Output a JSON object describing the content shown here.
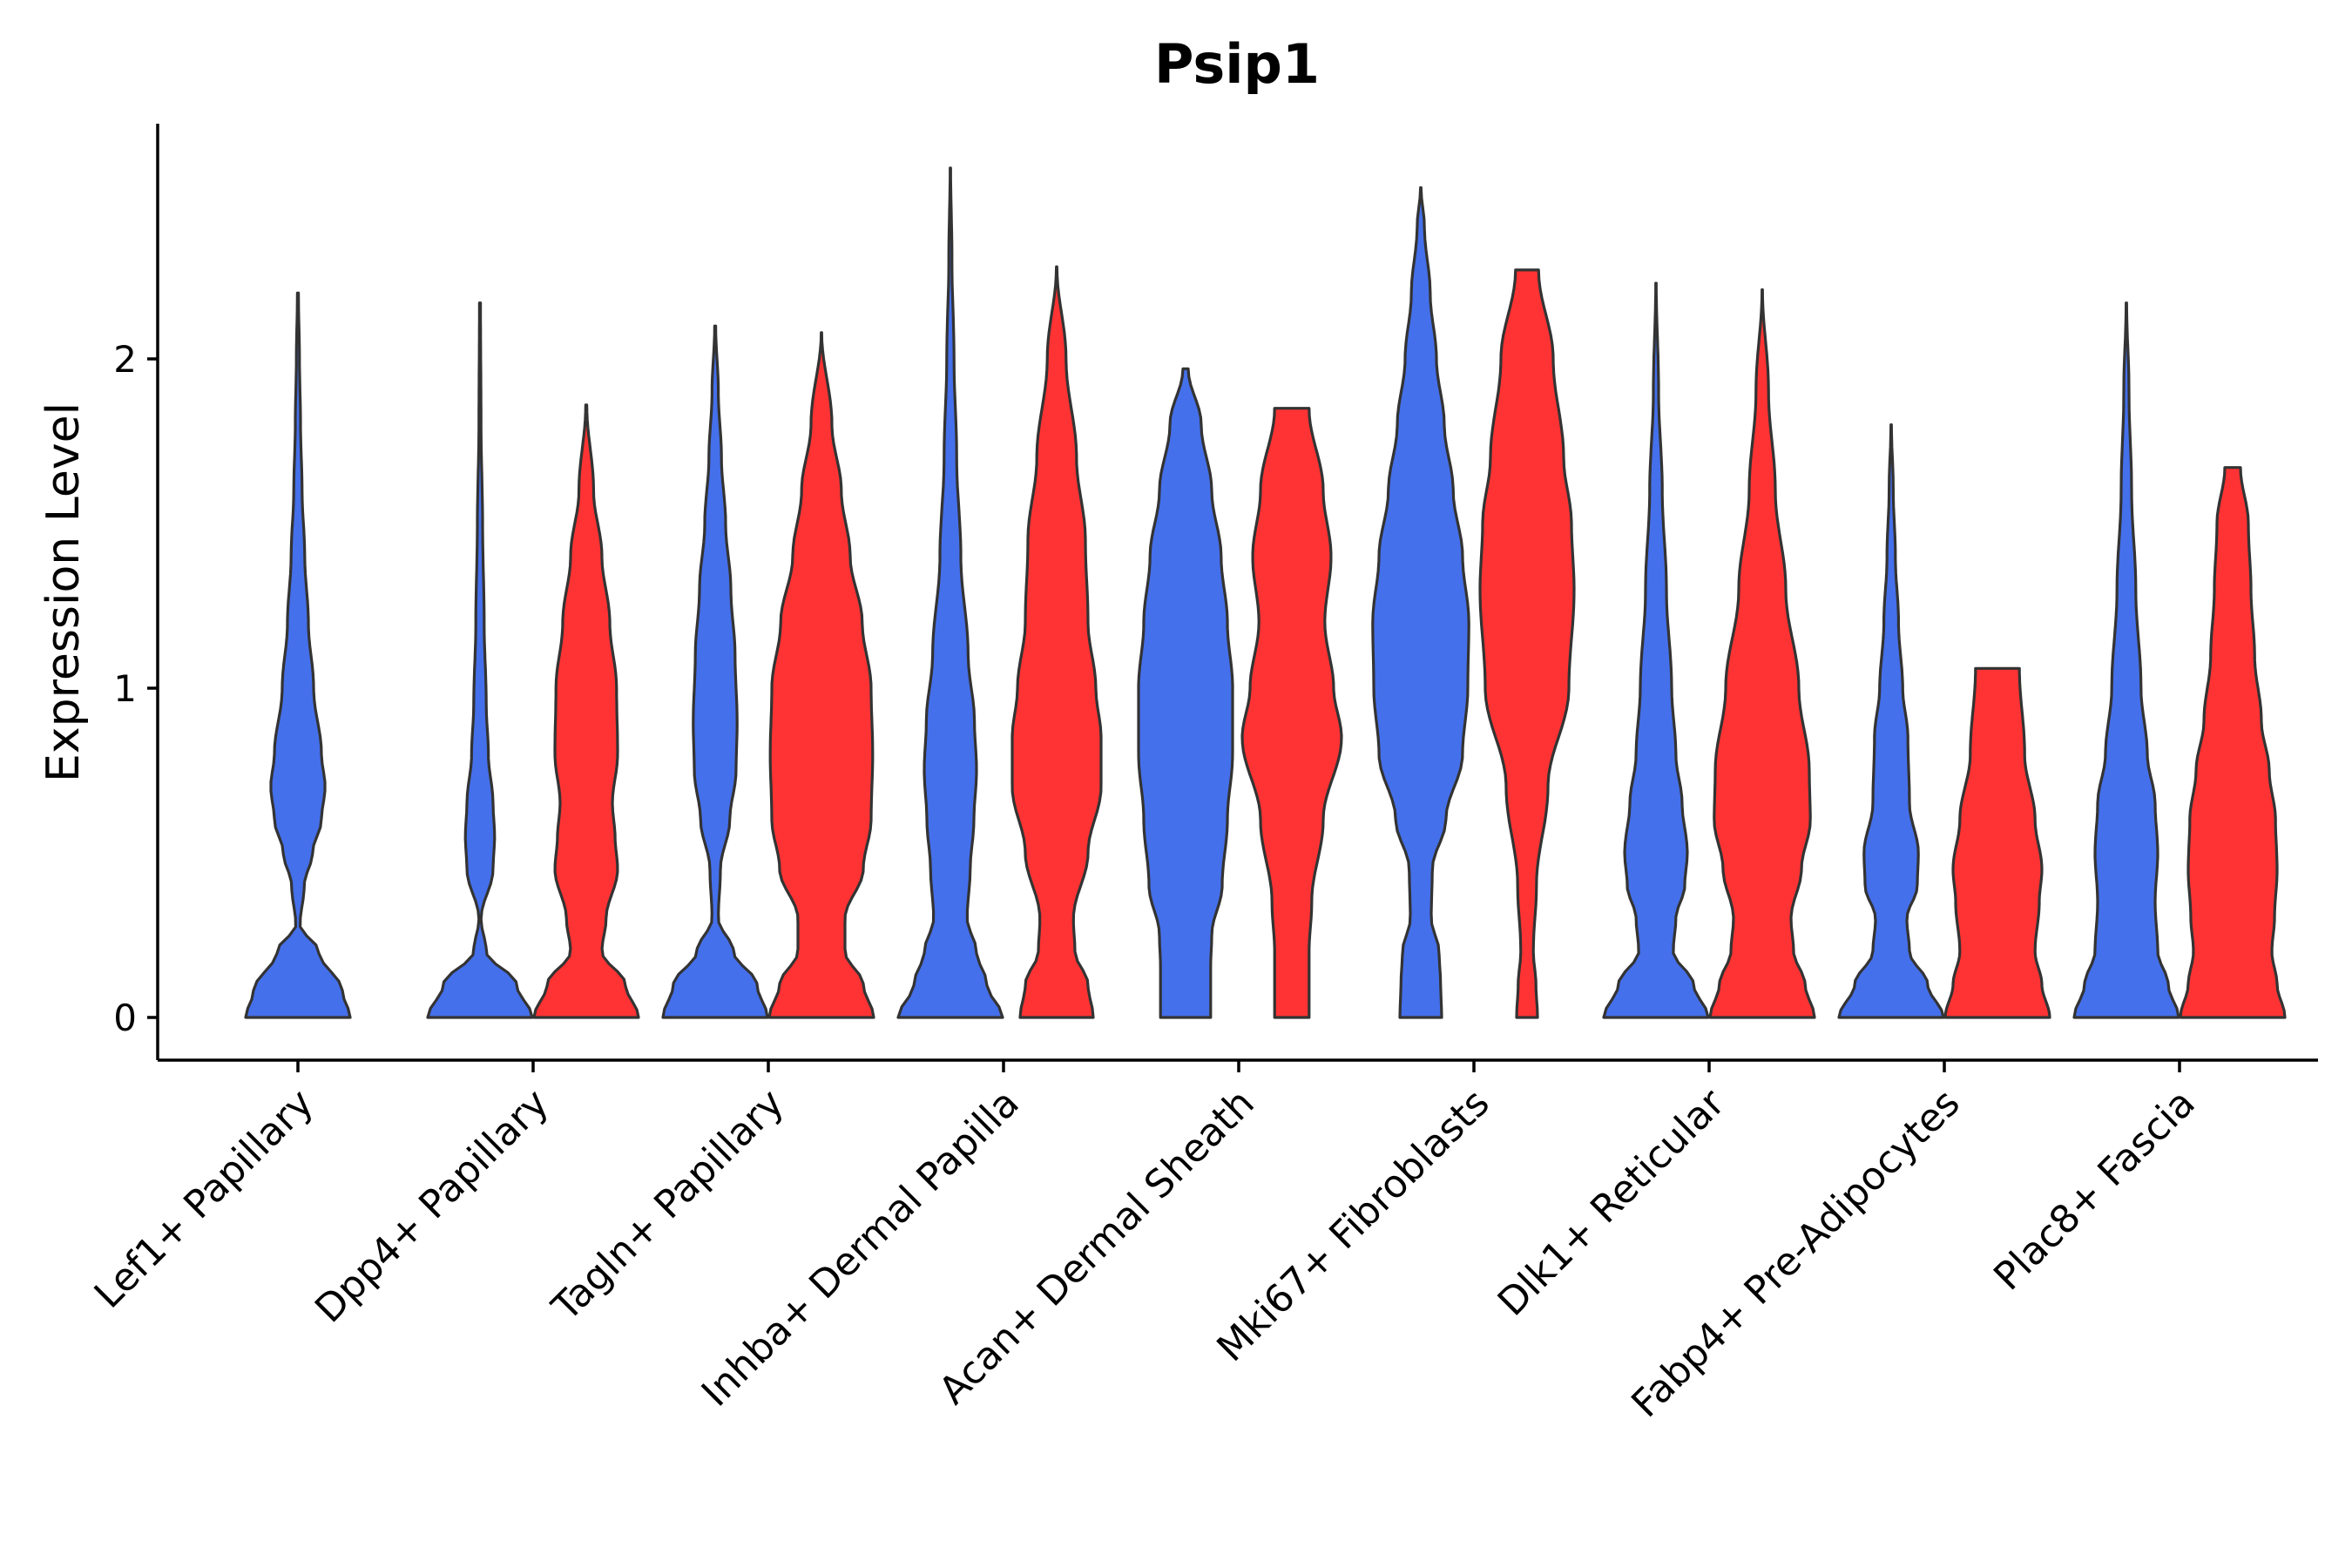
{
  "chart_data": {
    "type": "violin",
    "title": "Psip1",
    "xlabel": "",
    "ylabel": "Expression Level",
    "ylim": [
      -0.13,
      2.7
    ],
    "yticks": [
      0,
      1,
      2
    ],
    "split_colors": {
      "left": "#4570EB",
      "right": "#FF3333"
    },
    "categories": [
      "Lef1+ Papillary",
      "Dpp4+ Papillary",
      "Tagln+ Papillary",
      "Inhba+ Dermal Papilla",
      "Acan+ Dermal Sheath",
      "Mki67+ Fibroblasts",
      "Dlk1+ Reticular",
      "Fabp4+ Pre-Adipocytes",
      "Plac8+ Fascia"
    ],
    "series": [
      {
        "name": "blue",
        "color": "#4570EB",
        "violins": [
          {
            "max": 2.2,
            "profile": [
              [
                0,
                1.0
              ],
              [
                0.08,
                0.85
              ],
              [
                0.2,
                0.4
              ],
              [
                0.28,
                0.04
              ],
              [
                0.4,
                0.12
              ],
              [
                0.5,
                0.28
              ],
              [
                0.6,
                0.45
              ],
              [
                0.7,
                0.52
              ],
              [
                0.8,
                0.45
              ],
              [
                1.0,
                0.3
              ],
              [
                1.2,
                0.2
              ],
              [
                1.4,
                0.13
              ],
              [
                1.6,
                0.08
              ],
              [
                1.8,
                0.05
              ],
              [
                2.0,
                0.03
              ],
              [
                2.2,
                0.01
              ]
            ]
          },
          {
            "max": 2.17,
            "profile": [
              [
                0,
                1.0
              ],
              [
                0.1,
                0.7
              ],
              [
                0.2,
                0.12
              ],
              [
                0.3,
                0.02
              ],
              [
                0.45,
                0.25
              ],
              [
                0.55,
                0.28
              ],
              [
                0.65,
                0.25
              ],
              [
                0.8,
                0.16
              ],
              [
                0.95,
                0.12
              ],
              [
                1.2,
                0.08
              ],
              [
                1.5,
                0.05
              ],
              [
                1.8,
                0.02
              ],
              [
                2.17,
                0.01
              ]
            ]
          },
          {
            "max": 2.1,
            "profile": [
              [
                0,
                1.0
              ],
              [
                0.1,
                0.8
              ],
              [
                0.2,
                0.35
              ],
              [
                0.3,
                0.06
              ],
              [
                0.45,
                0.1
              ],
              [
                0.6,
                0.28
              ],
              [
                0.75,
                0.4
              ],
              [
                0.9,
                0.42
              ],
              [
                1.1,
                0.38
              ],
              [
                1.3,
                0.3
              ],
              [
                1.5,
                0.2
              ],
              [
                1.7,
                0.12
              ],
              [
                1.9,
                0.06
              ],
              [
                2.1,
                0.01
              ]
            ]
          },
          {
            "max": 2.58,
            "profile": [
              [
                0,
                1.0
              ],
              [
                0.1,
                0.7
              ],
              [
                0.2,
                0.5
              ],
              [
                0.3,
                0.32
              ],
              [
                0.45,
                0.38
              ],
              [
                0.6,
                0.45
              ],
              [
                0.75,
                0.5
              ],
              [
                0.9,
                0.46
              ],
              [
                1.1,
                0.34
              ],
              [
                1.4,
                0.2
              ],
              [
                1.7,
                0.12
              ],
              [
                2.0,
                0.07
              ],
              [
                2.3,
                0.03
              ],
              [
                2.58,
                0.005
              ]
            ]
          },
          {
            "max": 1.97,
            "profile": [
              [
                0,
                0.48
              ],
              [
                0.15,
                0.48
              ],
              [
                0.25,
                0.5
              ],
              [
                0.4,
                0.7
              ],
              [
                0.6,
                0.8
              ],
              [
                0.8,
                0.9
              ],
              [
                1.0,
                0.9
              ],
              [
                1.2,
                0.8
              ],
              [
                1.4,
                0.68
              ],
              [
                1.6,
                0.5
              ],
              [
                1.8,
                0.3
              ],
              [
                1.97,
                0.05
              ]
            ]
          },
          {
            "max": 2.52,
            "profile": [
              [
                0,
                0.4
              ],
              [
                0.1,
                0.38
              ],
              [
                0.2,
                0.35
              ],
              [
                0.3,
                0.2
              ],
              [
                0.45,
                0.22
              ],
              [
                0.6,
                0.48
              ],
              [
                0.8,
                0.8
              ],
              [
                1.0,
                0.9
              ],
              [
                1.2,
                0.92
              ],
              [
                1.4,
                0.8
              ],
              [
                1.6,
                0.62
              ],
              [
                1.8,
                0.45
              ],
              [
                2.0,
                0.3
              ],
              [
                2.2,
                0.18
              ],
              [
                2.4,
                0.07
              ],
              [
                2.52,
                0.005
              ]
            ]
          },
          {
            "max": 2.23,
            "profile": [
              [
                0,
                1.0
              ],
              [
                0.1,
                0.72
              ],
              [
                0.2,
                0.33
              ],
              [
                0.3,
                0.38
              ],
              [
                0.4,
                0.55
              ],
              [
                0.5,
                0.6
              ],
              [
                0.65,
                0.5
              ],
              [
                0.8,
                0.38
              ],
              [
                1.0,
                0.3
              ],
              [
                1.3,
                0.2
              ],
              [
                1.6,
                0.12
              ],
              [
                1.9,
                0.05
              ],
              [
                2.23,
                0.005
              ]
            ]
          },
          {
            "max": 1.8,
            "profile": [
              [
                0,
                1.0
              ],
              [
                0.1,
                0.7
              ],
              [
                0.2,
                0.35
              ],
              [
                0.3,
                0.3
              ],
              [
                0.4,
                0.5
              ],
              [
                0.5,
                0.52
              ],
              [
                0.65,
                0.35
              ],
              [
                0.85,
                0.32
              ],
              [
                1.0,
                0.22
              ],
              [
                1.2,
                0.14
              ],
              [
                1.4,
                0.08
              ],
              [
                1.6,
                0.04
              ],
              [
                1.8,
                0.005
              ]
            ]
          },
          {
            "max": 2.17,
            "profile": [
              [
                0,
                1.0
              ],
              [
                0.1,
                0.8
              ],
              [
                0.2,
                0.6
              ],
              [
                0.35,
                0.55
              ],
              [
                0.5,
                0.6
              ],
              [
                0.65,
                0.55
              ],
              [
                0.8,
                0.4
              ],
              [
                1.0,
                0.28
              ],
              [
                1.3,
                0.18
              ],
              [
                1.6,
                0.1
              ],
              [
                1.9,
                0.05
              ],
              [
                2.17,
                0.005
              ]
            ]
          }
        ]
      },
      {
        "name": "red",
        "color": "#FF3333",
        "violins": [
          null,
          {
            "max": 1.86,
            "profile": [
              [
                0,
                1.0
              ],
              [
                0.1,
                0.75
              ],
              [
                0.2,
                0.3
              ],
              [
                0.3,
                0.38
              ],
              [
                0.45,
                0.6
              ],
              [
                0.55,
                0.55
              ],
              [
                0.65,
                0.5
              ],
              [
                0.8,
                0.6
              ],
              [
                1.0,
                0.58
              ],
              [
                1.2,
                0.45
              ],
              [
                1.4,
                0.3
              ],
              [
                1.6,
                0.14
              ],
              [
                1.86,
                0.01
              ]
            ]
          },
          {
            "max": 2.08,
            "profile": [
              [
                0,
                1.0
              ],
              [
                0.1,
                0.8
              ],
              [
                0.2,
                0.45
              ],
              [
                0.3,
                0.45
              ],
              [
                0.45,
                0.8
              ],
              [
                0.6,
                0.95
              ],
              [
                0.8,
                0.98
              ],
              [
                1.0,
                0.95
              ],
              [
                1.2,
                0.78
              ],
              [
                1.4,
                0.55
              ],
              [
                1.6,
                0.38
              ],
              [
                1.8,
                0.2
              ],
              [
                2.08,
                0.005
              ]
            ]
          },
          {
            "max": 2.28,
            "profile": [
              [
                0,
                0.7
              ],
              [
                0.1,
                0.6
              ],
              [
                0.2,
                0.35
              ],
              [
                0.3,
                0.32
              ],
              [
                0.5,
                0.6
              ],
              [
                0.7,
                0.85
              ],
              [
                0.85,
                0.85
              ],
              [
                1.0,
                0.75
              ],
              [
                1.2,
                0.6
              ],
              [
                1.45,
                0.55
              ],
              [
                1.7,
                0.38
              ],
              [
                2.0,
                0.18
              ],
              [
                2.28,
                0.005
              ]
            ]
          },
          {
            "max": 1.85,
            "profile": [
              [
                0,
                0.33
              ],
              [
                0.2,
                0.33
              ],
              [
                0.35,
                0.38
              ],
              [
                0.6,
                0.6
              ],
              [
                0.85,
                0.95
              ],
              [
                1.0,
                0.8
              ],
              [
                1.2,
                0.63
              ],
              [
                1.4,
                0.75
              ],
              [
                1.6,
                0.6
              ],
              [
                1.85,
                0.33
              ]
            ]
          },
          {
            "max": 2.27,
            "profile": [
              [
                0,
                0.2
              ],
              [
                0.1,
                0.17
              ],
              [
                0.2,
                0.12
              ],
              [
                0.4,
                0.18
              ],
              [
                0.7,
                0.4
              ],
              [
                1.0,
                0.8
              ],
              [
                1.3,
                0.9
              ],
              [
                1.5,
                0.85
              ],
              [
                1.7,
                0.7
              ],
              [
                2.0,
                0.5
              ],
              [
                2.27,
                0.22
              ]
            ]
          },
          {
            "max": 2.21,
            "profile": [
              [
                0,
                1.0
              ],
              [
                0.1,
                0.82
              ],
              [
                0.2,
                0.6
              ],
              [
                0.3,
                0.55
              ],
              [
                0.45,
                0.75
              ],
              [
                0.6,
                0.92
              ],
              [
                0.75,
                0.9
              ],
              [
                1.0,
                0.7
              ],
              [
                1.3,
                0.45
              ],
              [
                1.6,
                0.25
              ],
              [
                1.9,
                0.12
              ],
              [
                2.21,
                0.005
              ]
            ]
          },
          {
            "max": 1.06,
            "profile": [
              [
                0,
                1.0
              ],
              [
                0.1,
                0.85
              ],
              [
                0.2,
                0.72
              ],
              [
                0.35,
                0.8
              ],
              [
                0.45,
                0.85
              ],
              [
                0.6,
                0.72
              ],
              [
                0.8,
                0.52
              ],
              [
                1.06,
                0.42
              ]
            ]
          },
          {
            "max": 1.67,
            "profile": [
              [
                0,
                1.0
              ],
              [
                0.1,
                0.85
              ],
              [
                0.2,
                0.75
              ],
              [
                0.3,
                0.8
              ],
              [
                0.45,
                0.85
              ],
              [
                0.6,
                0.82
              ],
              [
                0.75,
                0.7
              ],
              [
                0.9,
                0.55
              ],
              [
                1.1,
                0.42
              ],
              [
                1.3,
                0.35
              ],
              [
                1.5,
                0.3
              ],
              [
                1.67,
                0.15
              ]
            ]
          }
        ]
      }
    ]
  }
}
